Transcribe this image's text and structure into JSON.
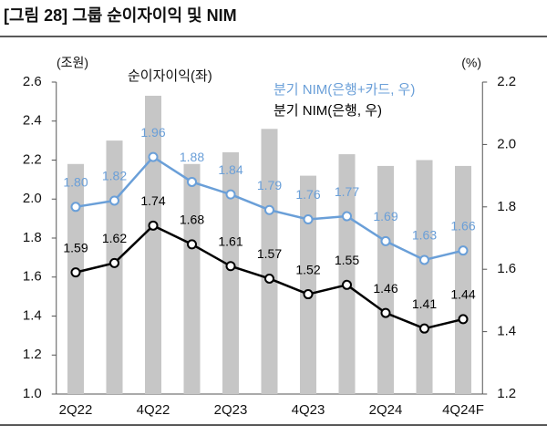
{
  "chart_data": {
    "type": "bar-line",
    "title": "[그림 28] 그룹 순이자이익 및 NIM",
    "y_unit": "(조원)",
    "y2_unit": "(%)",
    "categories": [
      "2Q22",
      null,
      "4Q22",
      null,
      "2Q23",
      null,
      "4Q23",
      null,
      "2Q24",
      null,
      "4Q24F"
    ],
    "series": [
      {
        "name": "순이자이익(좌)",
        "kind": "bar",
        "color": "#c6c6c6",
        "values": [
          2.18,
          2.3,
          2.53,
          2.18,
          2.24,
          2.36,
          2.12,
          2.23,
          2.17,
          2.2,
          2.17
        ]
      },
      {
        "name": "분기 NIM(은행+카드, 우)",
        "kind": "line",
        "axis": "y2",
        "color": "#6a9fd8",
        "values": [
          1.8,
          1.82,
          1.96,
          1.88,
          1.84,
          1.79,
          1.76,
          1.77,
          1.69,
          1.63,
          1.66
        ],
        "value_labels": [
          "1.80",
          "1.82",
          "1.96",
          "1.88",
          "1.84",
          "1.79",
          "1.76",
          "1.77",
          "1.69",
          "1.63",
          "1.66"
        ]
      },
      {
        "name": "분기 NIM(은행, 우)",
        "kind": "line",
        "axis": "y2",
        "color": "#000000",
        "values": [
          1.59,
          1.62,
          1.74,
          1.68,
          1.61,
          1.57,
          1.52,
          1.55,
          1.46,
          1.41,
          1.44
        ],
        "value_labels": [
          "1.59",
          "1.62",
          "1.74",
          "1.68",
          "1.61",
          "1.57",
          "1.52",
          "1.55",
          "1.46",
          "1.41",
          "1.44"
        ]
      }
    ],
    "ylim": [
      1.0,
      2.6
    ],
    "yticks": [
      {
        "value": 1.0,
        "label": "1.0"
      },
      1.2,
      1.4,
      1.6,
      1.8,
      {
        "value": 2.0,
        "label": "2.0"
      },
      2.2,
      2.4,
      2.6
    ],
    "y2lim": [
      1.2,
      2.2
    ],
    "y2ticks": [
      1.2,
      1.4,
      1.6,
      1.8,
      {
        "value": 2.0,
        "label": "2.0"
      },
      2.2
    ]
  }
}
